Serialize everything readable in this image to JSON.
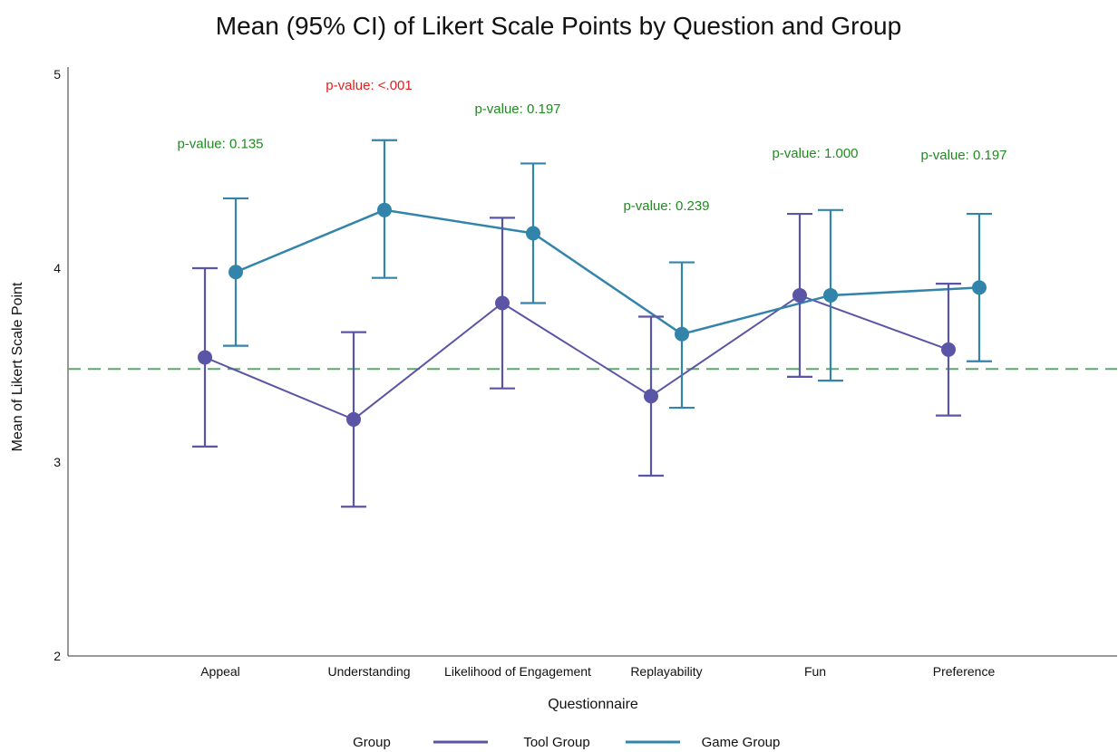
{
  "chart_data": {
    "type": "line",
    "title": "Mean (95% CI) of Likert Scale Points by Question and Group",
    "xlabel": "Questionnaire",
    "ylabel": "Mean of Likert Scale Point",
    "ylim": [
      2,
      5
    ],
    "yticks": [
      2,
      3,
      4,
      5
    ],
    "categories": [
      "Appeal",
      "Understanding",
      "Likelihood of Engagement",
      "Replayability",
      "Fun",
      "Preference"
    ],
    "reference_line": {
      "y": 3.48,
      "style": "dashed",
      "color": "#5aa86a"
    },
    "series": [
      {
        "name": "Tool Group",
        "color": "#5b55a6",
        "mean": [
          3.54,
          3.22,
          3.82,
          3.34,
          3.86,
          3.58
        ],
        "ci_low": [
          3.08,
          2.77,
          3.38,
          2.93,
          3.44,
          3.24
        ],
        "ci_high": [
          4.0,
          3.67,
          4.26,
          3.75,
          4.28,
          3.92
        ]
      },
      {
        "name": "Game Group",
        "color": "#3384aa",
        "mean": [
          3.98,
          4.3,
          4.18,
          3.66,
          3.86,
          3.9
        ],
        "ci_low": [
          3.6,
          3.95,
          3.82,
          3.28,
          3.42,
          3.52
        ],
        "ci_high": [
          4.36,
          4.66,
          4.54,
          4.03,
          4.3,
          4.28
        ]
      }
    ],
    "annotations": [
      {
        "text": "p-value: 0.135",
        "category": "Appeal",
        "y": 4.62,
        "color": "#1e8c1e"
      },
      {
        "text": "p-value: <.001",
        "category": "Understanding",
        "y": 4.92,
        "color": "#e02020"
      },
      {
        "text": "p-value: 0.197",
        "category": "Likelihood of Engagement",
        "y": 4.8,
        "color": "#1e8c1e"
      },
      {
        "text": "p-value: 0.239",
        "category": "Replayability",
        "y": 4.3,
        "color": "#1e8c1e"
      },
      {
        "text": "p-value: 1.000",
        "category": "Fun",
        "y": 4.57,
        "color": "#1e8c1e"
      },
      {
        "text": "p-value: 0.197",
        "category": "Preference",
        "y": 4.56,
        "color": "#1e8c1e"
      }
    ],
    "legend": {
      "title": "Group",
      "position": "bottom",
      "entries": [
        "Tool Group",
        "Game Group"
      ]
    },
    "grid": false
  }
}
